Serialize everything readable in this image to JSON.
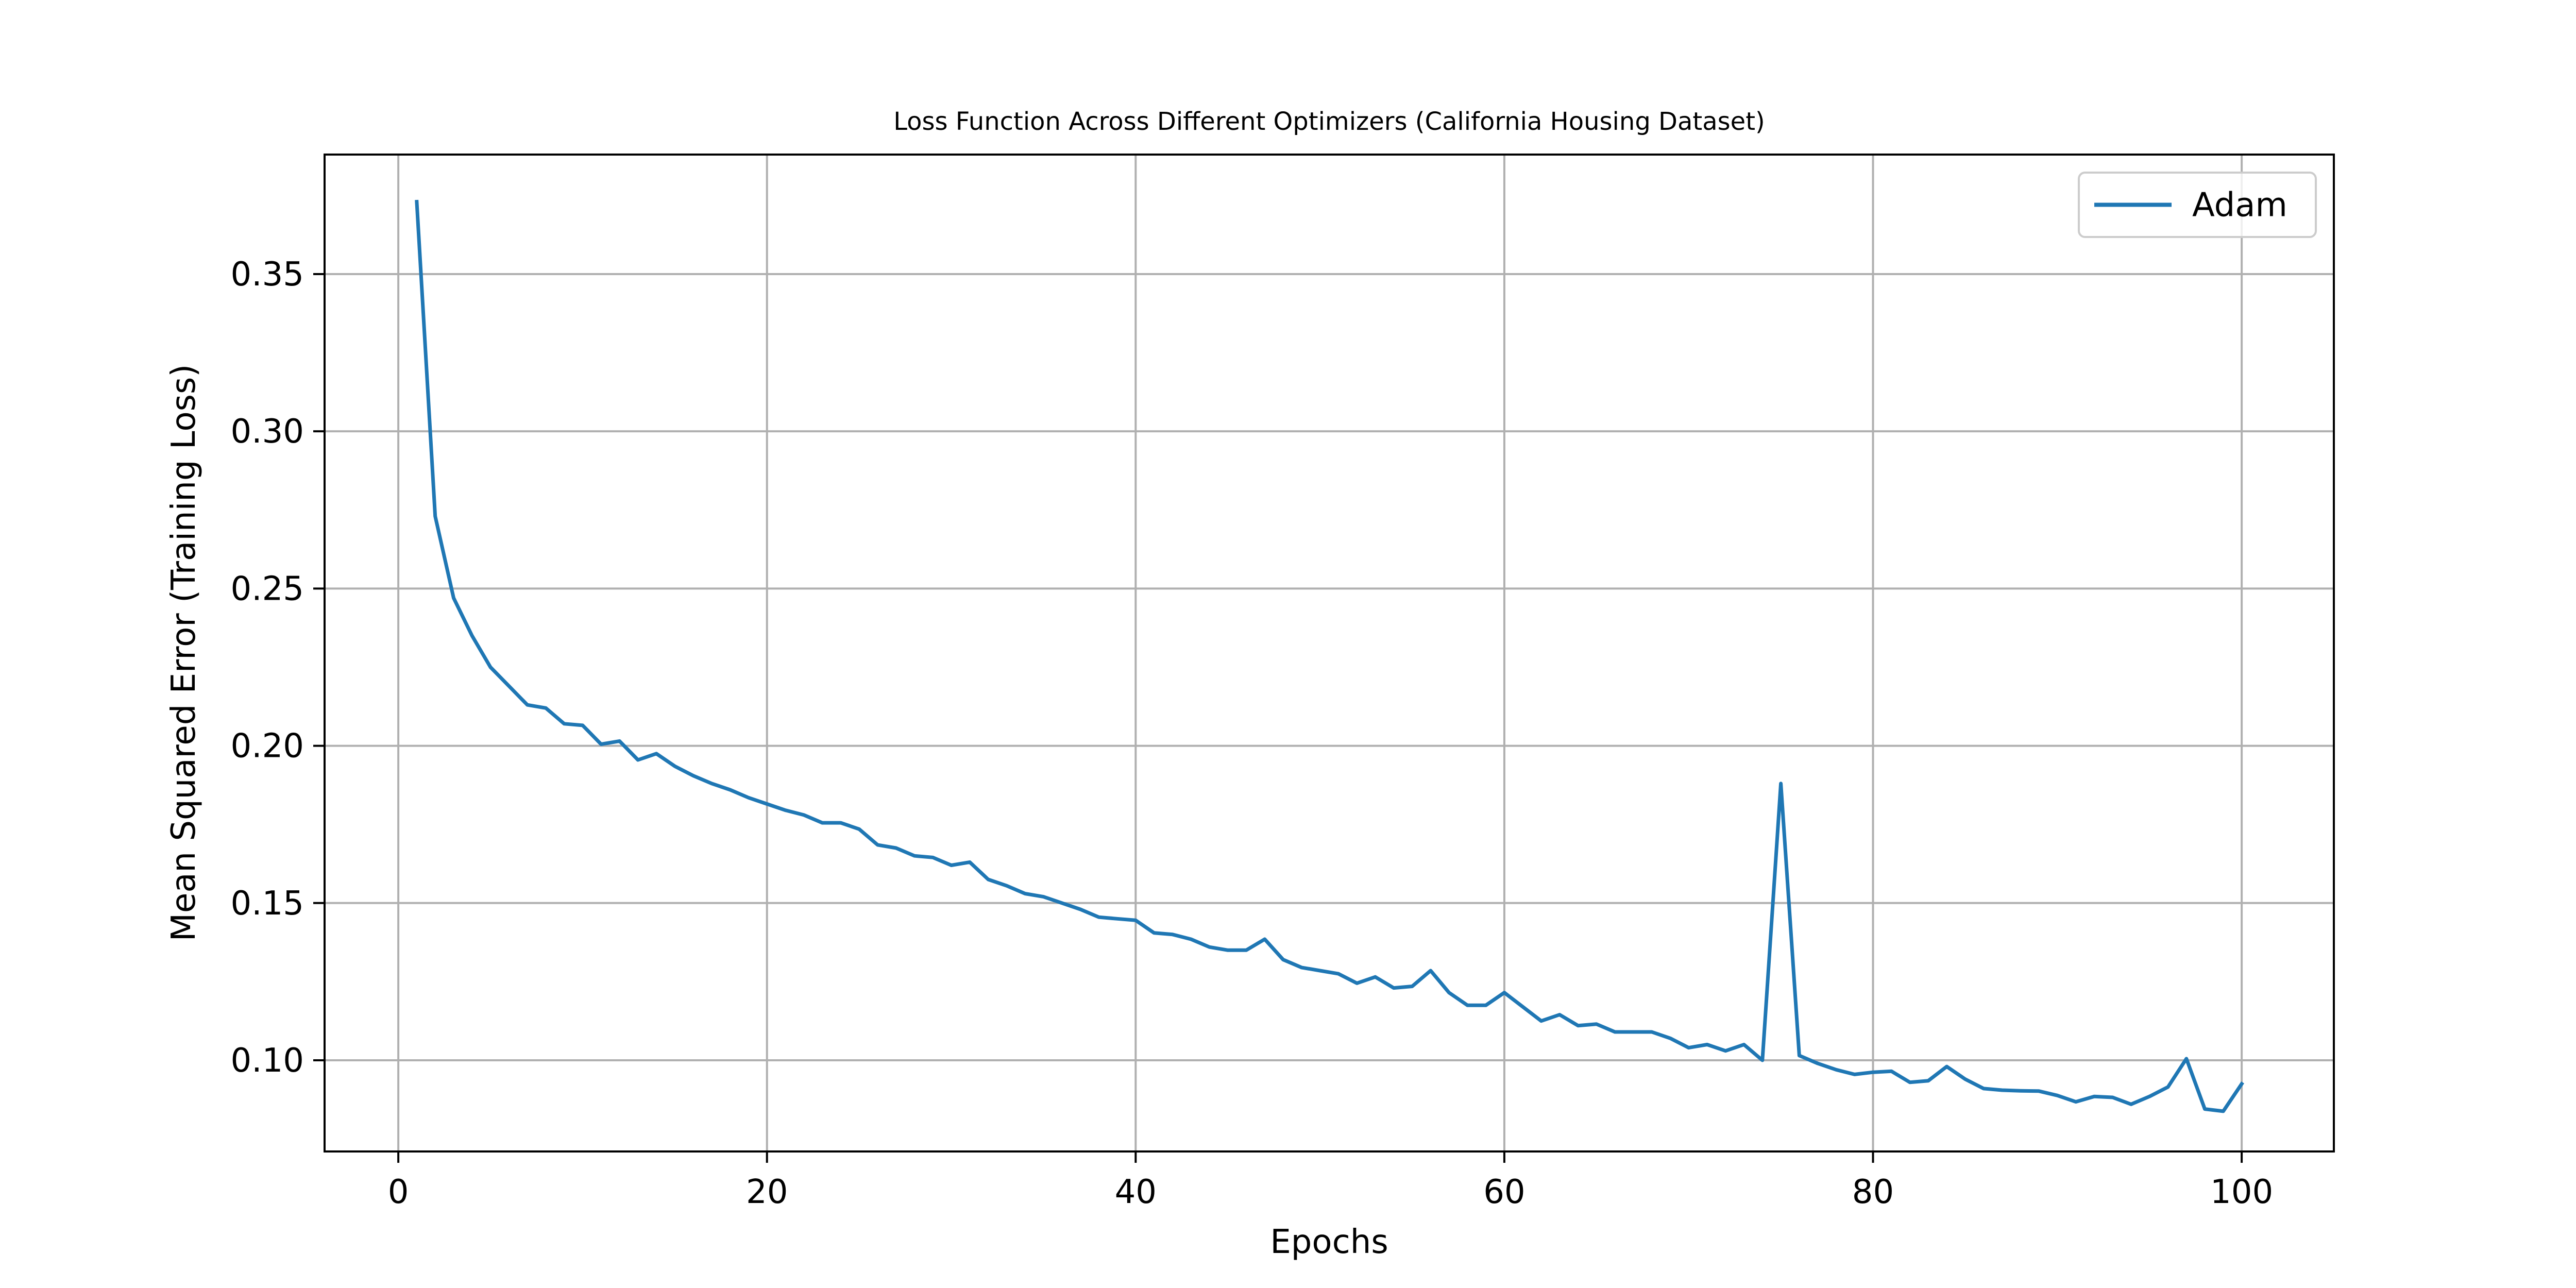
{
  "chart_data": {
    "type": "line",
    "title": "Loss Function Across Different Optimizers (California Housing Dataset)",
    "xlabel": "Epochs",
    "ylabel": "Mean Squared Error (Training Loss)",
    "xlim": [
      -4,
      105
    ],
    "ylim": [
      0.071,
      0.388
    ],
    "xticks": [
      0,
      20,
      40,
      60,
      80,
      100
    ],
    "yticks": [
      0.1,
      0.15,
      0.2,
      0.25,
      0.3,
      0.35
    ],
    "xtick_labels": [
      "0",
      "20",
      "40",
      "60",
      "80",
      "100"
    ],
    "ytick_labels": [
      "0.10",
      "0.15",
      "0.20",
      "0.25",
      "0.30",
      "0.35"
    ],
    "grid": true,
    "legend_position": "upper right",
    "series": [
      {
        "name": "Adam",
        "color": "#1f77b4",
        "x": [
          1,
          2,
          3,
          4,
          5,
          6,
          7,
          8,
          9,
          10,
          11,
          12,
          13,
          14,
          15,
          16,
          17,
          18,
          19,
          20,
          21,
          22,
          23,
          24,
          25,
          26,
          27,
          28,
          29,
          30,
          31,
          32,
          33,
          34,
          35,
          36,
          37,
          38,
          39,
          40,
          41,
          42,
          43,
          44,
          45,
          46,
          47,
          48,
          49,
          50,
          51,
          52,
          53,
          54,
          55,
          56,
          57,
          58,
          59,
          60,
          61,
          62,
          63,
          64,
          65,
          66,
          67,
          68,
          69,
          70,
          71,
          72,
          73,
          74,
          75,
          76,
          77,
          78,
          79,
          80,
          81,
          82,
          83,
          84,
          85,
          86,
          87,
          88,
          89,
          90,
          91,
          92,
          93,
          94,
          95,
          96,
          97,
          98,
          99,
          100
        ],
        "values": [
          0.373,
          0.273,
          0.247,
          0.235,
          0.225,
          0.219,
          0.213,
          0.212,
          0.207,
          0.2065,
          0.2005,
          0.2015,
          0.1955,
          0.1975,
          0.1935,
          0.1905,
          0.188,
          0.186,
          0.1835,
          0.1815,
          0.1795,
          0.178,
          0.1755,
          0.1755,
          0.1735,
          0.1685,
          0.1675,
          0.165,
          0.1645,
          0.162,
          0.163,
          0.1575,
          0.1555,
          0.153,
          0.152,
          0.15,
          0.148,
          0.1455,
          0.145,
          0.1445,
          0.1405,
          0.14,
          0.1385,
          0.136,
          0.135,
          0.135,
          0.1385,
          0.132,
          0.1295,
          0.1285,
          0.1275,
          0.1245,
          0.1265,
          0.123,
          0.1235,
          0.1285,
          0.1215,
          0.1175,
          0.1175,
          0.1215,
          0.117,
          0.1125,
          0.1145,
          0.111,
          0.1115,
          0.109,
          0.109,
          0.109,
          0.107,
          0.104,
          0.105,
          0.103,
          0.105,
          0.1,
          0.188,
          0.1015,
          0.099,
          0.097,
          0.0955,
          0.0962,
          0.0965,
          0.093,
          0.0935,
          0.098,
          0.094,
          0.091,
          0.0905,
          0.0903,
          0.0902,
          0.0888,
          0.0868,
          0.0885,
          0.0882,
          0.086,
          0.0885,
          0.0915,
          0.1005,
          0.0845,
          0.0838,
          0.0925
        ]
      }
    ]
  }
}
